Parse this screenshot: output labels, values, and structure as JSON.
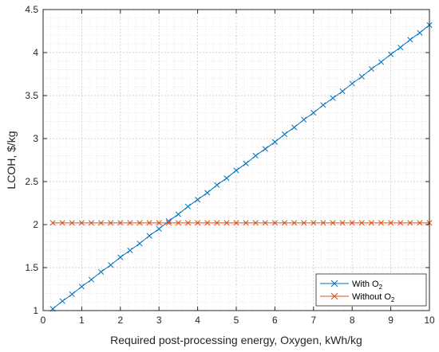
{
  "chart_data": {
    "type": "line",
    "title": "",
    "xlabel": "Required post-processing energy, Oxygen, kWh/kg",
    "ylabel": "LCOH, $/kg",
    "xlim": [
      0,
      10
    ],
    "ylim": [
      1,
      4.5
    ],
    "xticks": [
      "0",
      "1",
      "2",
      "3",
      "4",
      "5",
      "6",
      "7",
      "8",
      "9",
      "10"
    ],
    "yticks": [
      "1",
      "1.5",
      "2",
      "2.5",
      "3",
      "3.5",
      "4",
      "4.5"
    ],
    "grid": true,
    "minor_grid": true,
    "legend_position": "bottom-right",
    "marker": "x",
    "series": [
      {
        "name": "With O",
        "name_sub": "2",
        "color": "#0072BD",
        "x": [
          0.25,
          0.5,
          0.75,
          1.0,
          1.25,
          1.5,
          1.75,
          2.0,
          2.25,
          2.5,
          2.75,
          3.0,
          3.25,
          3.5,
          3.75,
          4.0,
          4.25,
          4.5,
          4.75,
          5.0,
          5.25,
          5.5,
          5.75,
          6.0,
          6.25,
          6.5,
          6.75,
          7.0,
          7.25,
          7.5,
          7.75,
          8.0,
          8.25,
          8.5,
          8.75,
          9.0,
          9.25,
          9.5,
          9.75,
          10.0
        ],
        "y": [
          1.02,
          1.11,
          1.19,
          1.28,
          1.36,
          1.45,
          1.53,
          1.62,
          1.7,
          1.78,
          1.87,
          1.95,
          2.04,
          2.12,
          2.21,
          2.29,
          2.37,
          2.46,
          2.54,
          2.63,
          2.71,
          2.8,
          2.88,
          2.96,
          3.05,
          3.13,
          3.22,
          3.3,
          3.39,
          3.47,
          3.55,
          3.64,
          3.72,
          3.81,
          3.89,
          3.98,
          4.06,
          4.15,
          4.23,
          4.32
        ]
      },
      {
        "name": "Without O",
        "name_sub": "2",
        "color": "#D95319",
        "x": [
          0.25,
          0.5,
          0.75,
          1.0,
          1.25,
          1.5,
          1.75,
          2.0,
          2.25,
          2.5,
          2.75,
          3.0,
          3.25,
          3.5,
          3.75,
          4.0,
          4.25,
          4.5,
          4.75,
          5.0,
          5.25,
          5.5,
          5.75,
          6.0,
          6.25,
          6.5,
          6.75,
          7.0,
          7.25,
          7.5,
          7.75,
          8.0,
          8.25,
          8.5,
          8.75,
          9.0,
          9.25,
          9.5,
          9.75,
          10.0
        ],
        "y": [
          2.02,
          2.02,
          2.02,
          2.02,
          2.02,
          2.02,
          2.02,
          2.02,
          2.02,
          2.02,
          2.02,
          2.02,
          2.02,
          2.02,
          2.02,
          2.02,
          2.02,
          2.02,
          2.02,
          2.02,
          2.02,
          2.02,
          2.02,
          2.02,
          2.02,
          2.02,
          2.02,
          2.02,
          2.02,
          2.02,
          2.02,
          2.02,
          2.02,
          2.02,
          2.02,
          2.02,
          2.02,
          2.02,
          2.02,
          2.02
        ]
      }
    ]
  }
}
